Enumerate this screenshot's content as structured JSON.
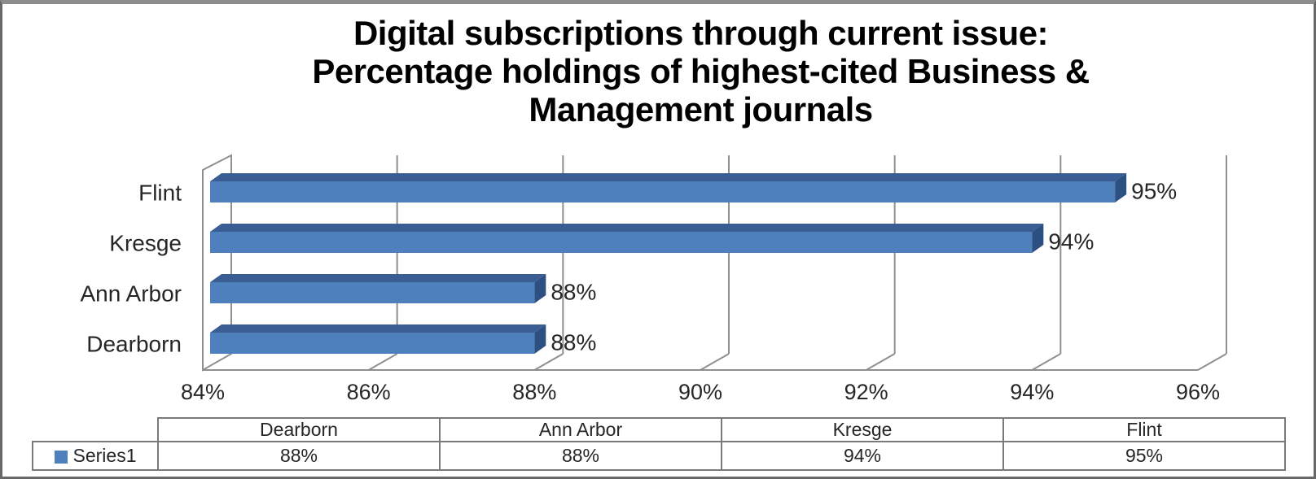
{
  "window": {
    "background": "#ffffff",
    "border_color": "#696969",
    "top_border_color": "#8d8d8d"
  },
  "chart_data": {
    "type": "bar",
    "orientation": "horizontal",
    "style": "3d",
    "title": "Digital subscriptions through current issue: Percentage holdings of highest-cited Business & Management journals",
    "title_lines": [
      "Digital subscriptions through current issue:",
      "Percentage holdings of highest-cited Business &",
      "Management journals"
    ],
    "categories": [
      "Dearborn",
      "Ann Arbor",
      "Kresge",
      "Flint"
    ],
    "plot_row_order_top_to_bottom": [
      "Flint",
      "Kresge",
      "Ann Arbor",
      "Dearborn"
    ],
    "series": [
      {
        "name": "Series1",
        "color": "#4e80bd",
        "values": [
          88,
          88,
          94,
          95
        ],
        "labels": [
          "88%",
          "88%",
          "94%",
          "95%"
        ]
      }
    ],
    "xlim": [
      84,
      96
    ],
    "xticks": [
      84,
      86,
      88,
      90,
      92,
      94,
      96
    ],
    "xtick_labels": [
      "84%",
      "86%",
      "88%",
      "90%",
      "92%",
      "94%",
      "96%"
    ],
    "grid": true,
    "legend_position": "left of bottom data table",
    "data_table_shown": true,
    "colors": {
      "bar_face": "#4e80bd",
      "bar_top": "#3a5e94",
      "bar_end": "#2d5082",
      "gridline": "#8f8f8f",
      "axis_text": "#262626",
      "data_label_text": "#262626",
      "table_border": "#7a7a7a",
      "title_text": "#000000"
    }
  }
}
